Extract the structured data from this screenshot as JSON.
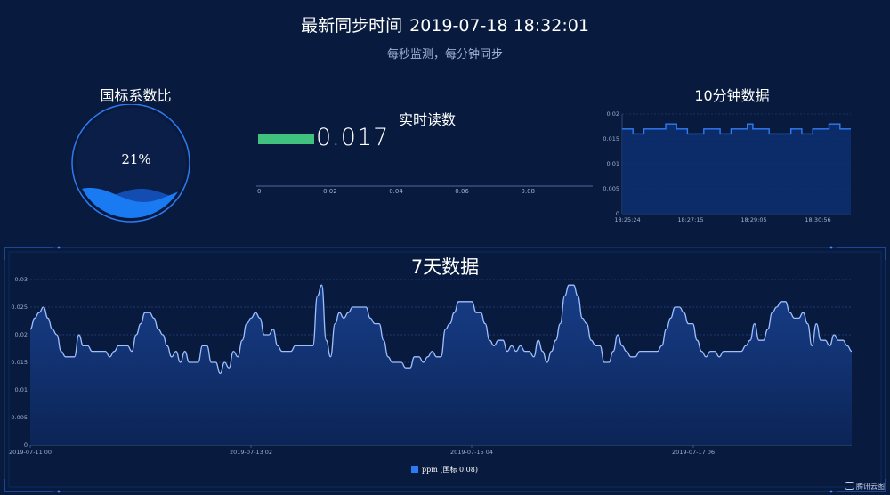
{
  "header": {
    "title_prefix": "最新同步时间",
    "timestamp": "2019-07-18 18:32:01",
    "subtitle": "每秒监测，每分钟同步"
  },
  "ratio_panel": {
    "title": "国标系数比",
    "percent_label": "21%",
    "level": 0.21,
    "color": "#1a6fe8"
  },
  "realtime_panel": {
    "title": "实时读数",
    "value_label": "0.017",
    "value": 0.017,
    "bar_color": "#40c27e",
    "axis_ticks": [
      "0",
      "0.02",
      "0.04",
      "0.06",
      "0.08"
    ],
    "axis_range": [
      0,
      0.1
    ]
  },
  "ten_min_panel": {
    "title": "10分钟数据",
    "y_ticks": [
      "0",
      "0.005",
      "0.01",
      "0.015",
      "0.02"
    ],
    "x_ticks": [
      "18:25:24",
      "18:27:15",
      "18:29:05",
      "18:30:56"
    ]
  },
  "seven_day_panel": {
    "title": "7天数据",
    "y_ticks": [
      "0",
      "0.005",
      "0.01",
      "0.015",
      "0.02",
      "0.025",
      "0.03"
    ],
    "x_ticks": [
      "2019-07-11 00",
      "2019-07-13 02",
      "2019-07-15 04",
      "2019-07-17 06"
    ],
    "legend_label": "ppm (国标 0.08)",
    "series_color": "#8fb8ff"
  },
  "brand": {
    "label": "腾讯云图"
  },
  "chart_data": [
    {
      "type": "bar",
      "title": "实时读数",
      "categories": [
        ""
      ],
      "values": [
        0.017
      ],
      "xlim": [
        0,
        0.1
      ]
    },
    {
      "type": "area",
      "title": "10分钟数据",
      "x_tick_labels": [
        "18:25:24",
        "18:27:15",
        "18:29:05",
        "18:30:56"
      ],
      "ylim": [
        0,
        0.02
      ],
      "values": [
        0.017,
        0.017,
        0.016,
        0.016,
        0.017,
        0.017,
        0.017,
        0.017,
        0.018,
        0.018,
        0.017,
        0.017,
        0.016,
        0.016,
        0.016,
        0.017,
        0.017,
        0.017,
        0.016,
        0.016,
        0.017,
        0.017,
        0.017,
        0.018,
        0.017,
        0.017,
        0.017,
        0.016,
        0.016,
        0.016,
        0.016,
        0.017,
        0.017,
        0.016,
        0.016,
        0.017,
        0.017,
        0.017,
        0.018,
        0.018,
        0.017,
        0.017,
        0.017
      ]
    },
    {
      "type": "area",
      "title": "7天数据",
      "legend": [
        "ppm (国标 0.08)"
      ],
      "x_tick_labels": [
        "2019-07-11 00",
        "2019-07-13 02",
        "2019-07-15 04",
        "2019-07-17 06"
      ],
      "ylim": [
        0,
        0.03
      ],
      "grid": true,
      "series": [
        {
          "name": "ppm (国标 0.08)",
          "values": [
            0.021,
            0.023,
            0.024,
            0.025,
            0.023,
            0.021,
            0.02,
            0.017,
            0.016,
            0.016,
            0.016,
            0.02,
            0.018,
            0.018,
            0.017,
            0.017,
            0.017,
            0.017,
            0.016,
            0.017,
            0.018,
            0.018,
            0.018,
            0.017,
            0.02,
            0.022,
            0.024,
            0.024,
            0.023,
            0.021,
            0.02,
            0.018,
            0.016,
            0.017,
            0.015,
            0.017,
            0.015,
            0.015,
            0.015,
            0.018,
            0.018,
            0.015,
            0.015,
            0.013,
            0.015,
            0.014,
            0.017,
            0.016,
            0.019,
            0.022,
            0.023,
            0.024,
            0.023,
            0.02,
            0.02,
            0.021,
            0.018,
            0.017,
            0.017,
            0.017,
            0.018,
            0.018,
            0.018,
            0.018,
            0.018,
            0.027,
            0.029,
            0.019,
            0.016,
            0.022,
            0.024,
            0.023,
            0.024,
            0.025,
            0.025,
            0.025,
            0.025,
            0.023,
            0.022,
            0.022,
            0.019,
            0.016,
            0.015,
            0.015,
            0.015,
            0.014,
            0.014,
            0.016,
            0.016,
            0.015,
            0.016,
            0.017,
            0.016,
            0.016,
            0.021,
            0.022,
            0.024,
            0.026,
            0.026,
            0.026,
            0.026,
            0.024,
            0.024,
            0.022,
            0.019,
            0.018,
            0.019,
            0.019,
            0.017,
            0.018,
            0.017,
            0.018,
            0.017,
            0.017,
            0.016,
            0.019,
            0.017,
            0.015,
            0.017,
            0.019,
            0.022,
            0.027,
            0.029,
            0.029,
            0.027,
            0.023,
            0.022,
            0.019,
            0.018,
            0.018,
            0.015,
            0.015,
            0.017,
            0.02,
            0.018,
            0.017,
            0.016,
            0.016,
            0.017,
            0.017,
            0.017,
            0.017,
            0.017,
            0.018,
            0.021,
            0.023,
            0.025,
            0.025,
            0.024,
            0.022,
            0.022,
            0.019,
            0.017,
            0.016,
            0.017,
            0.017,
            0.016,
            0.017,
            0.017,
            0.017,
            0.017,
            0.017,
            0.018,
            0.019,
            0.022,
            0.019,
            0.019,
            0.021,
            0.024,
            0.025,
            0.026,
            0.026,
            0.024,
            0.023,
            0.023,
            0.024,
            0.022,
            0.018,
            0.022,
            0.019,
            0.019,
            0.018,
            0.02,
            0.019,
            0.019,
            0.018,
            0.017
          ]
        }
      ]
    }
  ]
}
